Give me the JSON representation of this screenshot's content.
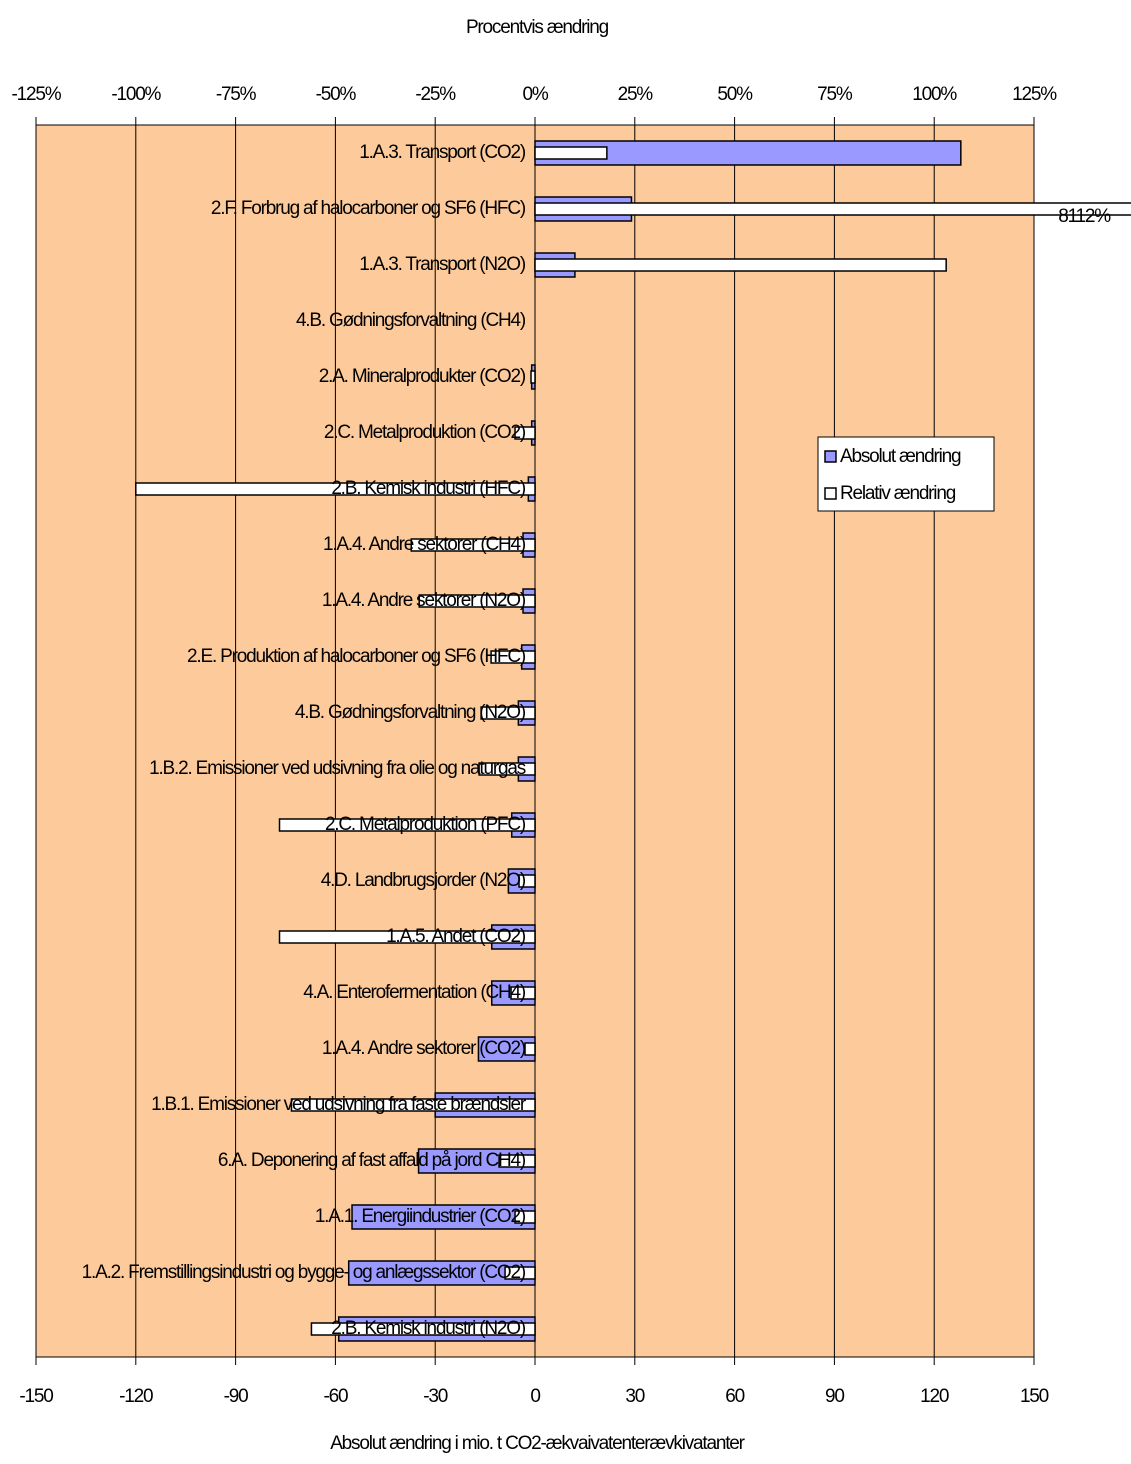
{
  "chart_data": {
    "type": "bar",
    "orientation": "horizontal",
    "title": "Procentvis ændring",
    "xlabel": "Absolut ændring i mio. t CO2-ækvaivatenterævkivatanter",
    "categories": [
      "1.A.3.  Transport (CO2)",
      "2.F. Forbrug af halocarboner og SF6 (HFC)",
      "1.A.3.  Transport (N2O)",
      "4.B.  Gødningsforvaltning (CH4)",
      "2.A.  Mineralprodukter (CO2)",
      "2.C. Metalproduktion (CO2)",
      "2.B. Kemisk industri (HFC)",
      "1.A.4.  Andre sektorer (CH4)",
      "1.A.4.  Andre sektorer (N2O)",
      "2.E. Produktion af halocarboner og SF6 (HFC)",
      "4.B.  Gødningsforvaltning (N2O)",
      "1.B.2. Emissioner ved udsivning fra olie og naturgas",
      "2.C. Metalproduktion (PFC)",
      "4.D.  Landbrugsjorder (N2O)",
      "1.A.5.  Andet (CO2)",
      "4.A.  Enterofermentation (CH4)",
      "1.A.4.  Andre sektorer (CO2)",
      "1.B.1. Emissioner ved udsivning fra faste brændsler",
      "6.A.  Deponering af fast affald på jord CH4)",
      "1.A.1.  Energiindustrier (CO2)",
      "1.A.2.  Fremstillingsindustri og bygge- og anlægssektor (CO2)",
      "2.B.  Kemisk industri (N2O)"
    ],
    "series": [
      {
        "name": "Absolut ændring",
        "color": "#9999ff",
        "axis": "x",
        "values": [
          128,
          29,
          12,
          0,
          -1,
          -1,
          -2,
          -3.6,
          -3.6,
          -4,
          -5,
          -5,
          -7,
          -8,
          -13,
          -13,
          -17,
          -30,
          -35,
          -55,
          -56,
          -59
        ]
      },
      {
        "name": "Relativ ændring",
        "color": "#ffffff",
        "axis": "x2",
        "values": [
          18,
          8112,
          103,
          0,
          -1,
          -5,
          -100,
          -31,
          -29,
          -11,
          -13.5,
          -14,
          -64,
          -4,
          -64,
          -6,
          -2.5,
          -61,
          -9,
          -5,
          -7.5,
          -56
        ],
        "value_labels": [
          null,
          "8112%",
          null,
          null,
          null,
          null,
          null,
          null,
          null,
          null,
          null,
          null,
          null,
          null,
          null,
          null,
          null,
          null,
          null,
          null,
          null,
          null
        ]
      }
    ],
    "xlim": [
      -150,
      150
    ],
    "xticks": [
      -150,
      -120,
      -90,
      -60,
      -30,
      0,
      30,
      60,
      90,
      120,
      150
    ],
    "x2lim": [
      -125,
      125
    ],
    "x2ticks": [
      {
        "value": -125,
        "label": "-125%"
      },
      {
        "value": -100,
        "label": "-100%"
      },
      {
        "value": -75,
        "label": "-75%"
      },
      {
        "value": -50,
        "label": "-50%"
      },
      {
        "value": -25,
        "label": "-25%"
      },
      {
        "value": 0,
        "label": "0%"
      },
      {
        "value": 25,
        "label": "25%"
      },
      {
        "value": 50,
        "label": "50%"
      },
      {
        "value": 75,
        "label": "75%"
      },
      {
        "value": 100,
        "label": "100%"
      },
      {
        "value": 125,
        "label": "125%"
      }
    ],
    "grid": true,
    "background": "#fdca9b",
    "legend": "right"
  }
}
